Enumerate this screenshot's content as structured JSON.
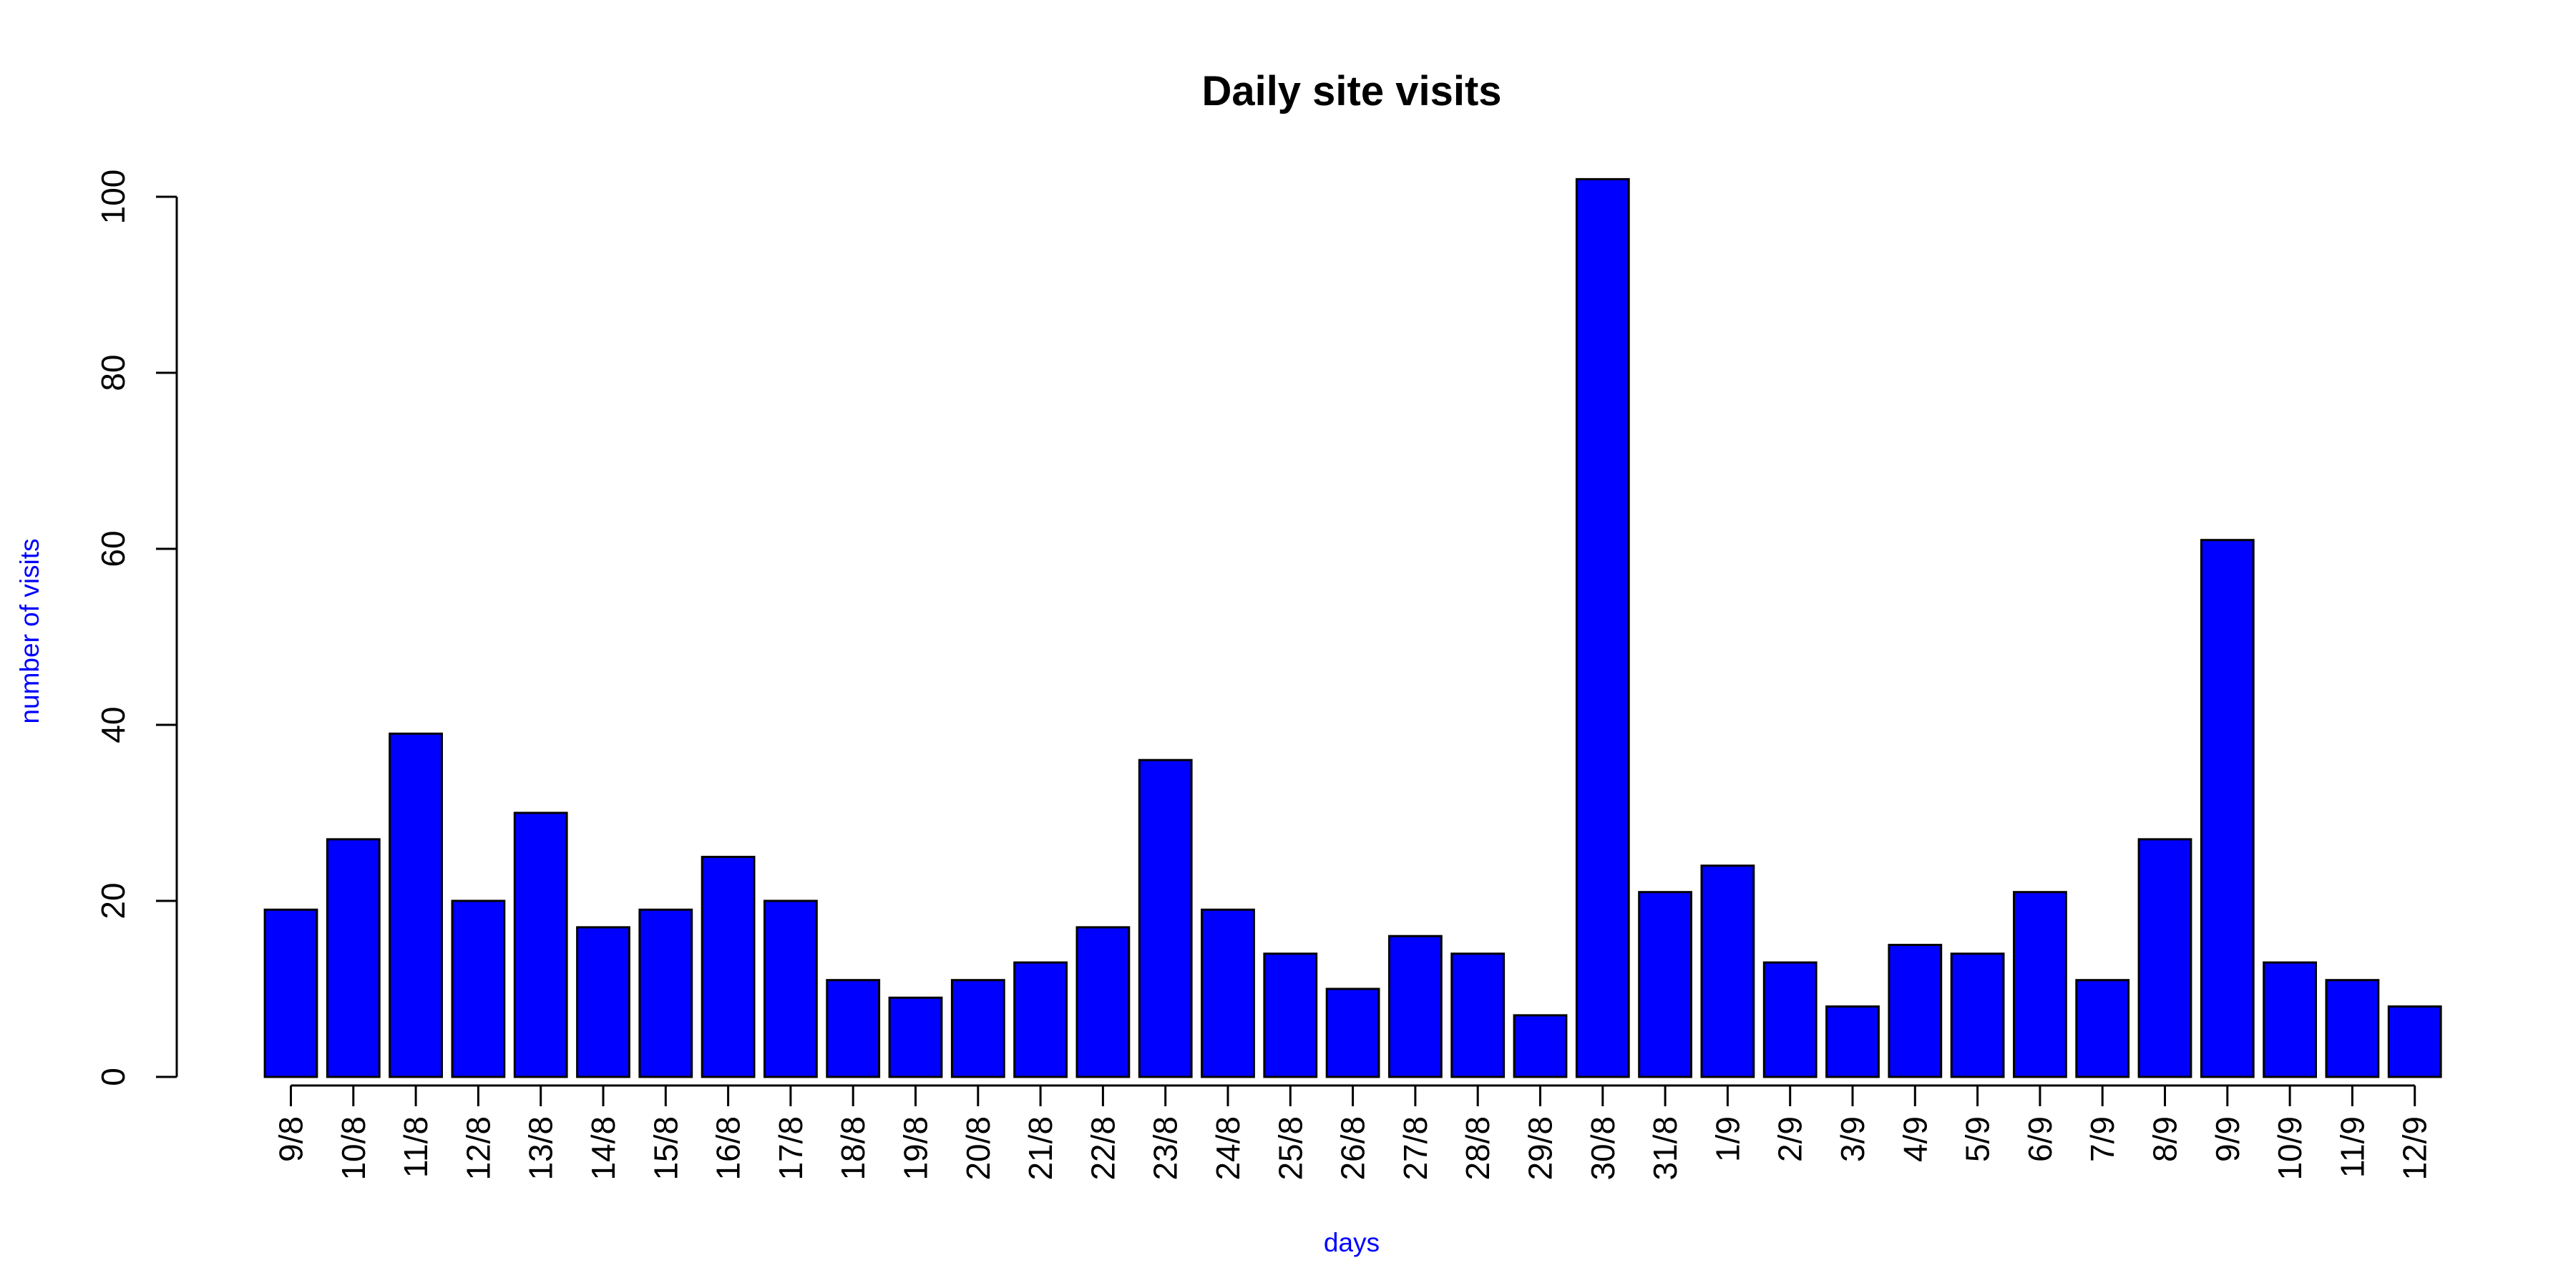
{
  "chart_data": {
    "type": "bar",
    "title": "Daily site visits",
    "xlabel": "days",
    "ylabel": "number of visits",
    "categories": [
      "9/8",
      "10/8",
      "11/8",
      "12/8",
      "13/8",
      "14/8",
      "15/8",
      "16/8",
      "17/8",
      "18/8",
      "19/8",
      "20/8",
      "21/8",
      "22/8",
      "23/8",
      "24/8",
      "25/8",
      "26/8",
      "27/8",
      "28/8",
      "29/8",
      "30/8",
      "31/8",
      "1/9",
      "2/9",
      "3/9",
      "4/9",
      "5/9",
      "6/9",
      "7/9",
      "8/9",
      "9/9",
      "10/9",
      "11/9",
      "12/9"
    ],
    "values": [
      19,
      27,
      39,
      20,
      30,
      17,
      19,
      25,
      20,
      11,
      9,
      11,
      13,
      17,
      36,
      19,
      14,
      10,
      16,
      14,
      7,
      102,
      21,
      24,
      13,
      8,
      15,
      14,
      21,
      11,
      27,
      61,
      13,
      11,
      8
    ],
    "ylim": [
      0,
      102
    ],
    "yticks": [
      0,
      20,
      40,
      60,
      80,
      100
    ],
    "grid": false,
    "legend": "none",
    "colors": {
      "bar_fill": "#0000ff",
      "bar_border": "#000000",
      "axis_label": "#0000ff",
      "title": "#000000"
    }
  }
}
